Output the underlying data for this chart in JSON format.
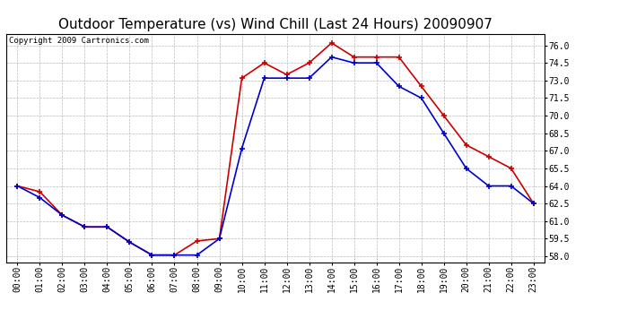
{
  "title": "Outdoor Temperature (vs) Wind Chill (Last 24 Hours) 20090907",
  "copyright": "Copyright 2009 Cartronics.com",
  "x_labels": [
    "00:00",
    "01:00",
    "02:00",
    "03:00",
    "04:00",
    "05:00",
    "06:00",
    "07:00",
    "08:00",
    "09:00",
    "10:00",
    "11:00",
    "12:00",
    "13:00",
    "14:00",
    "15:00",
    "16:00",
    "17:00",
    "18:00",
    "19:00",
    "20:00",
    "21:00",
    "22:00",
    "23:00"
  ],
  "outdoor_temp": [
    64.0,
    63.5,
    61.5,
    60.5,
    60.5,
    59.2,
    58.1,
    58.1,
    59.3,
    59.5,
    73.2,
    74.5,
    73.5,
    74.5,
    76.2,
    75.0,
    75.0,
    75.0,
    72.5,
    70.0,
    67.5,
    66.5,
    65.5,
    62.5
  ],
  "wind_chill": [
    64.0,
    63.0,
    61.5,
    60.5,
    60.5,
    59.2,
    58.1,
    58.1,
    58.1,
    59.5,
    67.2,
    73.2,
    73.2,
    73.2,
    75.0,
    74.5,
    74.5,
    72.5,
    71.5,
    68.5,
    65.5,
    64.0,
    64.0,
    62.5
  ],
  "temp_color": "#cc0000",
  "chill_color": "#0000cc",
  "ylim": [
    57.5,
    77.0
  ],
  "yticks": [
    58.0,
    59.5,
    61.0,
    62.5,
    64.0,
    65.5,
    67.0,
    68.5,
    70.0,
    71.5,
    73.0,
    74.5,
    76.0
  ],
  "background_color": "#ffffff",
  "plot_bg_color": "#ffffff",
  "grid_color": "#bbbbbb",
  "title_fontsize": 11,
  "copyright_fontsize": 6.5,
  "tick_fontsize": 7,
  "marker": "+",
  "marker_size": 5,
  "line_width": 1.2
}
